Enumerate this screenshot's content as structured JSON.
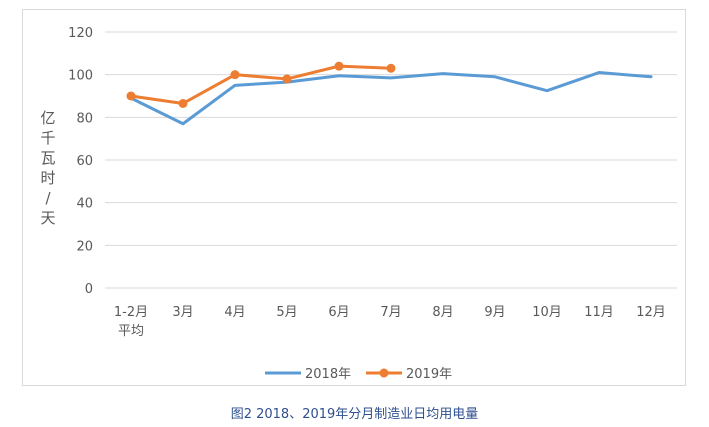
{
  "chart_data": {
    "type": "line",
    "ylabel": "亿千瓦时/天",
    "ylim": [
      0,
      120
    ],
    "yticks": [
      0,
      20,
      40,
      60,
      80,
      100,
      120
    ],
    "categories": [
      "1-2月\n平均",
      "3月",
      "4月",
      "5月",
      "6月",
      "7月",
      "8月",
      "9月",
      "10月",
      "11月",
      "12月"
    ],
    "series": [
      {
        "name": "2018年",
        "color": "#5b9bd5",
        "marker": false,
        "values": [
          89,
          77,
          95,
          96.5,
          99.5,
          98.5,
          100.5,
          99,
          92.5,
          101,
          99
        ]
      },
      {
        "name": "2019年",
        "color": "#ed7d31",
        "marker": true,
        "values": [
          90,
          86.5,
          100,
          98,
          104,
          103,
          null,
          null,
          null,
          null,
          null
        ]
      }
    ],
    "grid": true,
    "legend": "bottom"
  },
  "caption": "图2   2018、2019年分月制造业日均用电量"
}
